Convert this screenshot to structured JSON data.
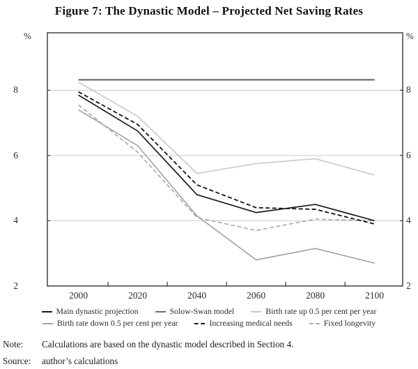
{
  "title": "Figure 7: The Dynastic Model – Projected Net Saving Rates",
  "axis": {
    "unit_left": "%",
    "unit_right": "%",
    "y_ticks": [
      2,
      4,
      6,
      8
    ],
    "y_gridlines": [
      4,
      6,
      8
    ],
    "x_ticks_labeled": [
      2000,
      2020,
      2040,
      2060,
      2080,
      2100
    ],
    "x_ticks_minor": [
      2010,
      2030,
      2050,
      2070,
      2090
    ],
    "xlim": [
      1989.5,
      2109.5
    ]
  },
  "chart_data": {
    "type": "line",
    "title": "Figure 7: The Dynastic Model – Projected Net Saving Rates",
    "xlabel": "",
    "ylabel": "%",
    "ylim": [
      2,
      9.76
    ],
    "grid": "horizontal gridlines at 4, 6, 8",
    "legend_position": "below, two centered rows",
    "x": [
      2000,
      2020,
      2040,
      2060,
      2080,
      2100
    ],
    "series": [
      {
        "name": "Main dynastic projection",
        "color": "#1a1a1a",
        "dash": "solid",
        "width": 1.7,
        "values": [
          7.85,
          6.75,
          4.8,
          4.25,
          4.5,
          4.0
        ]
      },
      {
        "name": "Solow-Swan model",
        "color": "#6e6e6e",
        "dash": "solid",
        "width": 2.2,
        "values": [
          8.32,
          8.32,
          8.32,
          8.32,
          8.32,
          8.32
        ]
      },
      {
        "name": "Birth rate up 0.5 per cent per year",
        "color": "#c9c9c9",
        "dash": "solid",
        "width": 1.6,
        "values": [
          8.25,
          7.2,
          5.45,
          5.75,
          5.9,
          5.4
        ]
      },
      {
        "name": "Birth rate down 0.5 per cent per year",
        "color": "#a3a3a3",
        "dash": "solid",
        "width": 1.6,
        "values": [
          7.4,
          6.3,
          4.15,
          2.8,
          3.15,
          2.7
        ]
      },
      {
        "name": "Increasing medical needs",
        "color": "#111111",
        "dash": "dashed",
        "width": 1.8,
        "values": [
          7.95,
          6.95,
          5.1,
          4.4,
          4.35,
          3.9
        ]
      },
      {
        "name": "Fixed longevity",
        "color": "#a8a8a8",
        "dash": "dashed",
        "width": 1.6,
        "values": [
          7.55,
          6.1,
          4.1,
          3.7,
          4.05,
          4.0
        ]
      }
    ]
  },
  "legend": {
    "rows": [
      [
        0,
        1,
        2
      ],
      [
        3,
        4,
        5
      ]
    ]
  },
  "footer": {
    "note_label": "Note:",
    "note_text": "Calculations are based on the dynastic model described in Section 4.",
    "source_label": "Source:",
    "source_text": "author’s calculations"
  }
}
